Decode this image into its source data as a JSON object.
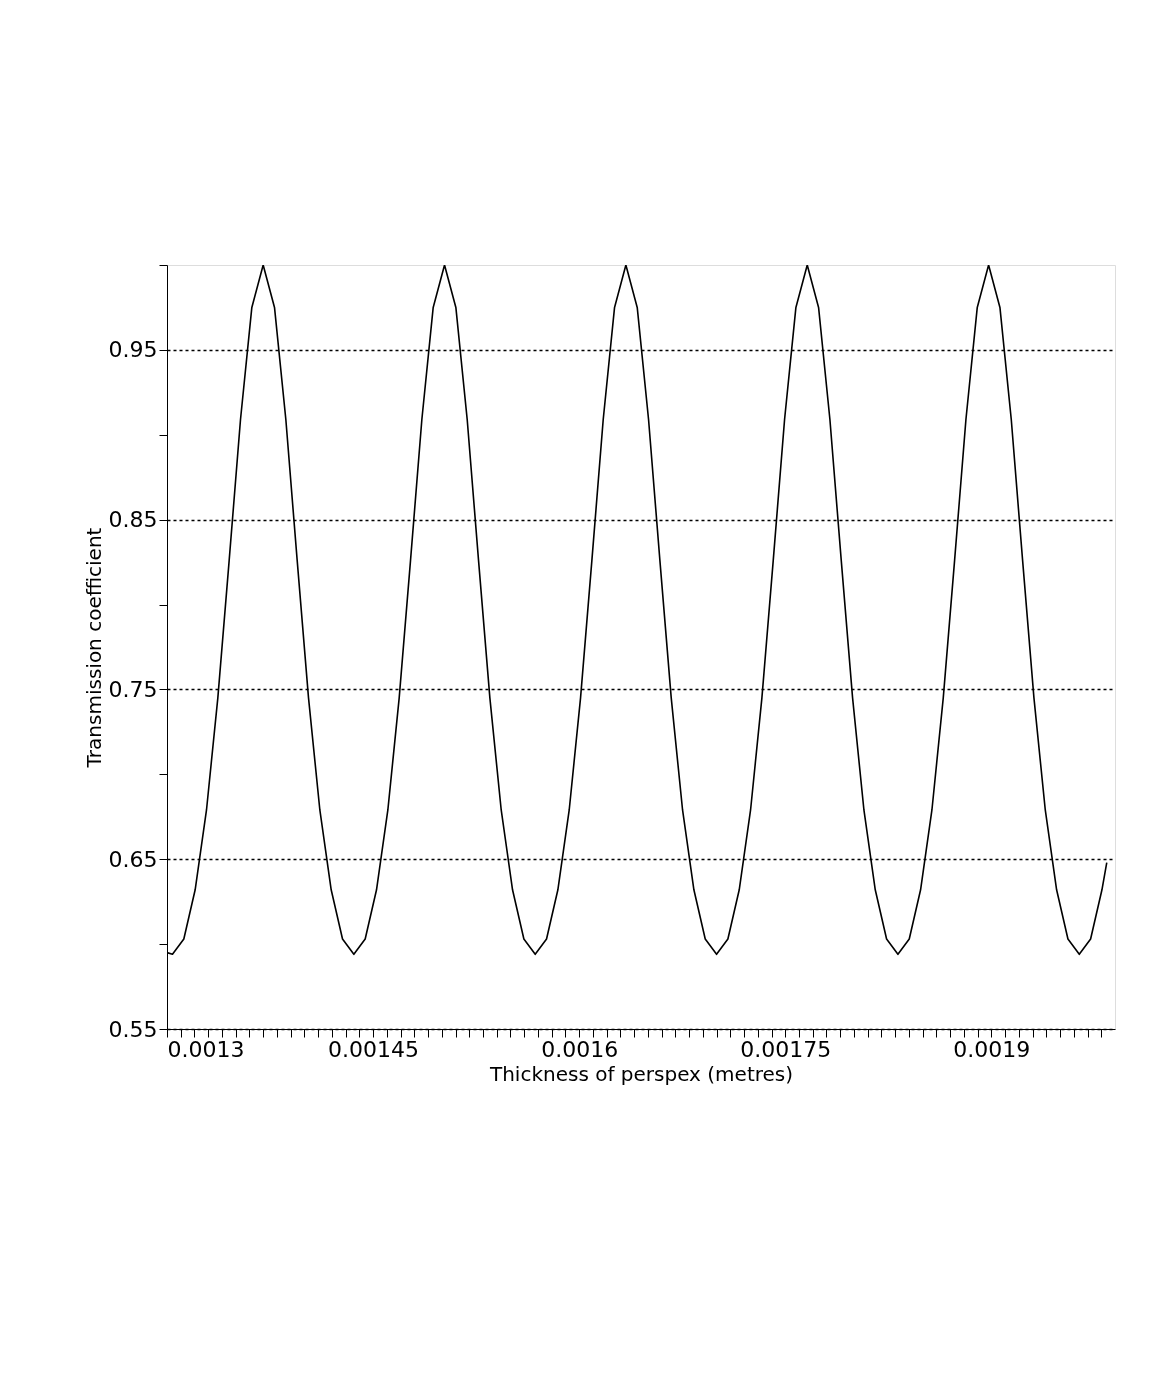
{
  "chart_data": {
    "type": "line",
    "xlabel": "Thickness of perspex (metres)",
    "ylabel": "Transmission coefficient",
    "x": [
      0.0013,
      0.001304,
      0.00131225,
      0.0013205,
      0.00132875,
      0.001337,
      0.00134525,
      0.0013535,
      0.00136175,
      0.00137,
      0.00137825,
      0.0013865,
      0.00139475,
      0.001403,
      0.00141125,
      0.0014195,
      0.00142775,
      0.001436,
      0.00144425,
      0.0014525,
      0.00146075,
      0.001469,
      0.00147725,
      0.0014855,
      0.00149375,
      0.001502,
      0.00151025,
      0.0015185,
      0.00152675,
      0.001535,
      0.00154325,
      0.0015515,
      0.00155975,
      0.001568,
      0.00157625,
      0.0015845,
      0.00159275,
      0.001601,
      0.00160925,
      0.0016175,
      0.00162575,
      0.001634,
      0.00164225,
      0.0016505,
      0.00165875,
      0.001667,
      0.00167525,
      0.0016835,
      0.00169175,
      0.0017,
      0.00170825,
      0.0017165,
      0.00172475,
      0.001733,
      0.00174125,
      0.0017495,
      0.00175775,
      0.001766,
      0.00177425,
      0.0017825,
      0.00179075,
      0.001799,
      0.00180725,
      0.0018155,
      0.00182375,
      0.001832,
      0.00184025,
      0.0018485,
      0.00185675,
      0.001865,
      0.00187325,
      0.0018815,
      0.00188975,
      0.001898,
      0.00190625,
      0.0019145,
      0.00192275,
      0.001931,
      0.00193925,
      0.0019475,
      0.00195575,
      0.001964,
      0.00197225,
      0.0019805,
      0.001984
    ],
    "series": [
      {
        "color": "#000000",
        "values": [
          0.595,
          0.594,
          0.603,
          0.632,
          0.679,
          0.745,
          0.826,
          0.909,
          0.975,
          1.0,
          0.975,
          0.909,
          0.826,
          0.745,
          0.679,
          0.632,
          0.603,
          0.594,
          0.603,
          0.632,
          0.679,
          0.745,
          0.826,
          0.909,
          0.975,
          1.0,
          0.975,
          0.909,
          0.826,
          0.745,
          0.679,
          0.632,
          0.603,
          0.594,
          0.603,
          0.632,
          0.679,
          0.745,
          0.826,
          0.909,
          0.975,
          1.0,
          0.975,
          0.909,
          0.826,
          0.745,
          0.679,
          0.632,
          0.603,
          0.594,
          0.603,
          0.632,
          0.679,
          0.745,
          0.826,
          0.909,
          0.975,
          1.0,
          0.975,
          0.909,
          0.826,
          0.745,
          0.679,
          0.632,
          0.603,
          0.594,
          0.603,
          0.632,
          0.679,
          0.745,
          0.826,
          0.909,
          0.975,
          1.0,
          0.975,
          0.909,
          0.826,
          0.745,
          0.679,
          0.632,
          0.603,
          0.594,
          0.603,
          0.632,
          0.648
        ]
      }
    ],
    "xlim": [
      0.0013,
      0.00199
    ],
    "xticks": [
      {
        "value": 0.0013,
        "label": "0.0013"
      },
      {
        "value": 0.00131,
        "label": null
      },
      {
        "value": 0.00132,
        "label": null
      },
      {
        "value": 0.00133,
        "label": null
      },
      {
        "value": 0.00134,
        "label": null
      },
      {
        "value": 0.00135,
        "label": null
      },
      {
        "value": 0.00136,
        "label": null
      },
      {
        "value": 0.00137,
        "label": null
      },
      {
        "value": 0.00138,
        "label": null
      },
      {
        "value": 0.00139,
        "label": null
      },
      {
        "value": 0.0014,
        "label": null
      },
      {
        "value": 0.00141,
        "label": null
      },
      {
        "value": 0.00142,
        "label": null
      },
      {
        "value": 0.00143,
        "label": null
      },
      {
        "value": 0.00144,
        "label": null
      },
      {
        "value": 0.00145,
        "label": "0.00145"
      },
      {
        "value": 0.00146,
        "label": null
      },
      {
        "value": 0.00147,
        "label": null
      },
      {
        "value": 0.00148,
        "label": null
      },
      {
        "value": 0.00149,
        "label": null
      },
      {
        "value": 0.0015,
        "label": null
      },
      {
        "value": 0.00151,
        "label": null
      },
      {
        "value": 0.00152,
        "label": null
      },
      {
        "value": 0.00153,
        "label": null
      },
      {
        "value": 0.00154,
        "label": null
      },
      {
        "value": 0.00155,
        "label": null
      },
      {
        "value": 0.00156,
        "label": null
      },
      {
        "value": 0.00157,
        "label": null
      },
      {
        "value": 0.00158,
        "label": null
      },
      {
        "value": 0.00159,
        "label": null
      },
      {
        "value": 0.0016,
        "label": "0.0016"
      },
      {
        "value": 0.00161,
        "label": null
      },
      {
        "value": 0.00162,
        "label": null
      },
      {
        "value": 0.00163,
        "label": null
      },
      {
        "value": 0.00164,
        "label": null
      },
      {
        "value": 0.00165,
        "label": null
      },
      {
        "value": 0.00166,
        "label": null
      },
      {
        "value": 0.00167,
        "label": null
      },
      {
        "value": 0.00168,
        "label": null
      },
      {
        "value": 0.00169,
        "label": null
      },
      {
        "value": 0.0017,
        "label": null
      },
      {
        "value": 0.00171,
        "label": null
      },
      {
        "value": 0.00172,
        "label": null
      },
      {
        "value": 0.00173,
        "label": null
      },
      {
        "value": 0.00174,
        "label": null
      },
      {
        "value": 0.00175,
        "label": "0.00175"
      },
      {
        "value": 0.00176,
        "label": null
      },
      {
        "value": 0.00177,
        "label": null
      },
      {
        "value": 0.00178,
        "label": null
      },
      {
        "value": 0.00179,
        "label": null
      },
      {
        "value": 0.0018,
        "label": null
      },
      {
        "value": 0.00181,
        "label": null
      },
      {
        "value": 0.00182,
        "label": null
      },
      {
        "value": 0.00183,
        "label": null
      },
      {
        "value": 0.00184,
        "label": null
      },
      {
        "value": 0.00185,
        "label": null
      },
      {
        "value": 0.00186,
        "label": null
      },
      {
        "value": 0.00187,
        "label": null
      },
      {
        "value": 0.00188,
        "label": null
      },
      {
        "value": 0.00189,
        "label": null
      },
      {
        "value": 0.0019,
        "label": "0.0019"
      },
      {
        "value": 0.00191,
        "label": null
      },
      {
        "value": 0.00192,
        "label": null
      },
      {
        "value": 0.00193,
        "label": null
      },
      {
        "value": 0.00194,
        "label": null
      },
      {
        "value": 0.00195,
        "label": null
      },
      {
        "value": 0.00196,
        "label": null
      },
      {
        "value": 0.00197,
        "label": null
      },
      {
        "value": 0.00198,
        "label": null
      }
    ],
    "ylim": [
      0.55,
      1.0
    ],
    "yticks": [
      0.55,
      {
        "value": 0.6,
        "label": null
      },
      0.65,
      {
        "value": 0.7,
        "label": null
      },
      0.75,
      {
        "value": 0.8,
        "label": null
      },
      0.85,
      {
        "value": 0.9,
        "label": null
      },
      0.95,
      {
        "value": 1.0,
        "label": null
      }
    ],
    "grid": "y",
    "line_style": "solid"
  }
}
